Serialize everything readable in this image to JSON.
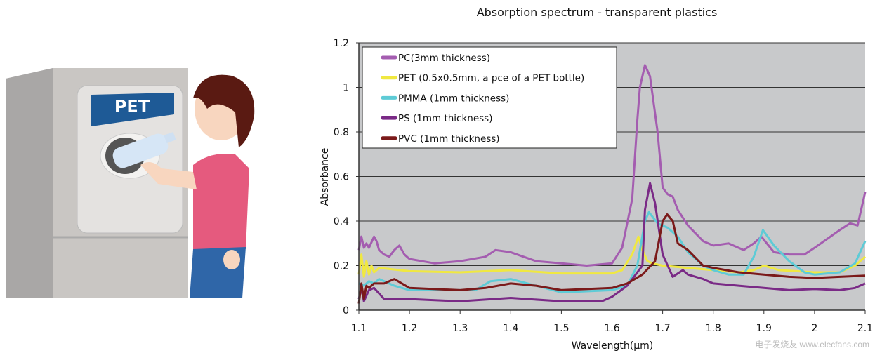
{
  "illustration": {
    "sign_label": "PET",
    "colors": {
      "machine": "#c9c6c3",
      "sign": "#1e5a96",
      "shirt": "#e55a7e",
      "jeans": "#2f66a8",
      "hair": "#5a1a12"
    }
  },
  "watermark": "电子发烧友 www.elecfans.com",
  "chart_data": {
    "type": "line",
    "title": "Absorption spectrum - transparent plastics",
    "xlabel": "Wavelength(μm)",
    "ylabel": "Absorbance",
    "xlim": [
      1.1,
      2.1
    ],
    "ylim": [
      0,
      1.2
    ],
    "xticks": [
      "1.1",
      "1.2",
      "1.3",
      "1.4",
      "1.5",
      "1.6",
      "1.7",
      "1.8",
      "1.9",
      "2",
      "2.1"
    ],
    "yticks": [
      "0",
      "0.2",
      "0.4",
      "0.6",
      "0.8",
      "1",
      "1.2"
    ],
    "grid": "horizontal",
    "plot_background": "#c8c9cb",
    "legend_placement": "top-left",
    "series": [
      {
        "name": "PC(3mm thickness)",
        "color": "#a45db0",
        "x": [
          1.1,
          1.105,
          1.11,
          1.115,
          1.12,
          1.13,
          1.135,
          1.14,
          1.15,
          1.16,
          1.17,
          1.18,
          1.19,
          1.2,
          1.25,
          1.3,
          1.35,
          1.37,
          1.4,
          1.45,
          1.5,
          1.55,
          1.6,
          1.62,
          1.64,
          1.65,
          1.655,
          1.665,
          1.675,
          1.69,
          1.7,
          1.71,
          1.72,
          1.73,
          1.75,
          1.78,
          1.8,
          1.83,
          1.86,
          1.88,
          1.895,
          1.92,
          1.95,
          1.98,
          2.0,
          2.05,
          2.07,
          2.085,
          2.1
        ],
        "y": [
          0.27,
          0.33,
          0.28,
          0.3,
          0.28,
          0.33,
          0.31,
          0.27,
          0.25,
          0.24,
          0.27,
          0.29,
          0.25,
          0.23,
          0.21,
          0.22,
          0.24,
          0.27,
          0.26,
          0.22,
          0.21,
          0.2,
          0.21,
          0.28,
          0.5,
          0.85,
          1.0,
          1.1,
          1.05,
          0.8,
          0.55,
          0.52,
          0.51,
          0.45,
          0.38,
          0.31,
          0.29,
          0.3,
          0.27,
          0.3,
          0.33,
          0.26,
          0.25,
          0.25,
          0.28,
          0.36,
          0.39,
          0.38,
          0.53
        ]
      },
      {
        "name": "PET (0.5x0.5mm, a pce of a PET bottle)",
        "color": "#f0e840",
        "x": [
          1.1,
          1.105,
          1.11,
          1.115,
          1.12,
          1.125,
          1.13,
          1.14,
          1.2,
          1.3,
          1.4,
          1.5,
          1.6,
          1.62,
          1.64,
          1.652,
          1.66,
          1.67,
          1.68,
          1.7,
          1.75,
          1.8,
          1.85,
          1.88,
          1.9,
          1.93,
          2.0,
          2.05,
          2.08,
          2.1
        ],
        "y": [
          0.16,
          0.25,
          0.15,
          0.22,
          0.16,
          0.2,
          0.17,
          0.19,
          0.175,
          0.17,
          0.18,
          0.165,
          0.165,
          0.18,
          0.25,
          0.33,
          0.27,
          0.22,
          0.21,
          0.2,
          0.19,
          0.18,
          0.17,
          0.18,
          0.2,
          0.18,
          0.17,
          0.17,
          0.2,
          0.24
        ]
      },
      {
        "name": "PMMA (1mm thickness)",
        "color": "#5ecbd6",
        "x": [
          1.1,
          1.11,
          1.12,
          1.13,
          1.14,
          1.17,
          1.2,
          1.3,
          1.33,
          1.36,
          1.4,
          1.45,
          1.5,
          1.6,
          1.63,
          1.65,
          1.665,
          1.673,
          1.69,
          1.71,
          1.73,
          1.75,
          1.78,
          1.8,
          1.83,
          1.86,
          1.88,
          1.898,
          1.92,
          1.95,
          1.98,
          2.0,
          2.05,
          2.08,
          2.1
        ],
        "y": [
          0.12,
          0.11,
          0.13,
          0.12,
          0.14,
          0.11,
          0.09,
          0.09,
          0.09,
          0.13,
          0.14,
          0.11,
          0.08,
          0.09,
          0.11,
          0.2,
          0.4,
          0.44,
          0.39,
          0.37,
          0.33,
          0.26,
          0.2,
          0.18,
          0.16,
          0.16,
          0.24,
          0.36,
          0.29,
          0.22,
          0.17,
          0.16,
          0.17,
          0.21,
          0.31
        ]
      },
      {
        "name": "PS (1mm thickness)",
        "color": "#7a2a86",
        "x": [
          1.1,
          1.105,
          1.11,
          1.12,
          1.13,
          1.15,
          1.2,
          1.3,
          1.4,
          1.5,
          1.58,
          1.6,
          1.63,
          1.66,
          1.665,
          1.675,
          1.685,
          1.7,
          1.72,
          1.74,
          1.75,
          1.78,
          1.8,
          1.85,
          1.9,
          1.95,
          2.0,
          2.05,
          2.08,
          2.1
        ],
        "y": [
          0.05,
          0.1,
          0.04,
          0.09,
          0.1,
          0.05,
          0.05,
          0.04,
          0.055,
          0.04,
          0.04,
          0.06,
          0.11,
          0.2,
          0.45,
          0.57,
          0.48,
          0.25,
          0.15,
          0.18,
          0.16,
          0.14,
          0.12,
          0.11,
          0.1,
          0.09,
          0.095,
          0.09,
          0.1,
          0.12
        ]
      },
      {
        "name": "PVC (1mm thickness)",
        "color": "#7b1a1a",
        "x": [
          1.1,
          1.105,
          1.11,
          1.115,
          1.12,
          1.13,
          1.15,
          1.17,
          1.2,
          1.3,
          1.35,
          1.4,
          1.45,
          1.5,
          1.6,
          1.63,
          1.66,
          1.685,
          1.7,
          1.709,
          1.72,
          1.73,
          1.75,
          1.78,
          1.8,
          1.85,
          1.9,
          1.95,
          2.0,
          2.05,
          2.1
        ],
        "y": [
          0.03,
          0.12,
          0.05,
          0.11,
          0.1,
          0.12,
          0.12,
          0.14,
          0.1,
          0.09,
          0.1,
          0.12,
          0.11,
          0.09,
          0.1,
          0.12,
          0.16,
          0.22,
          0.4,
          0.43,
          0.4,
          0.3,
          0.27,
          0.2,
          0.19,
          0.17,
          0.16,
          0.15,
          0.145,
          0.15,
          0.155
        ]
      }
    ]
  }
}
